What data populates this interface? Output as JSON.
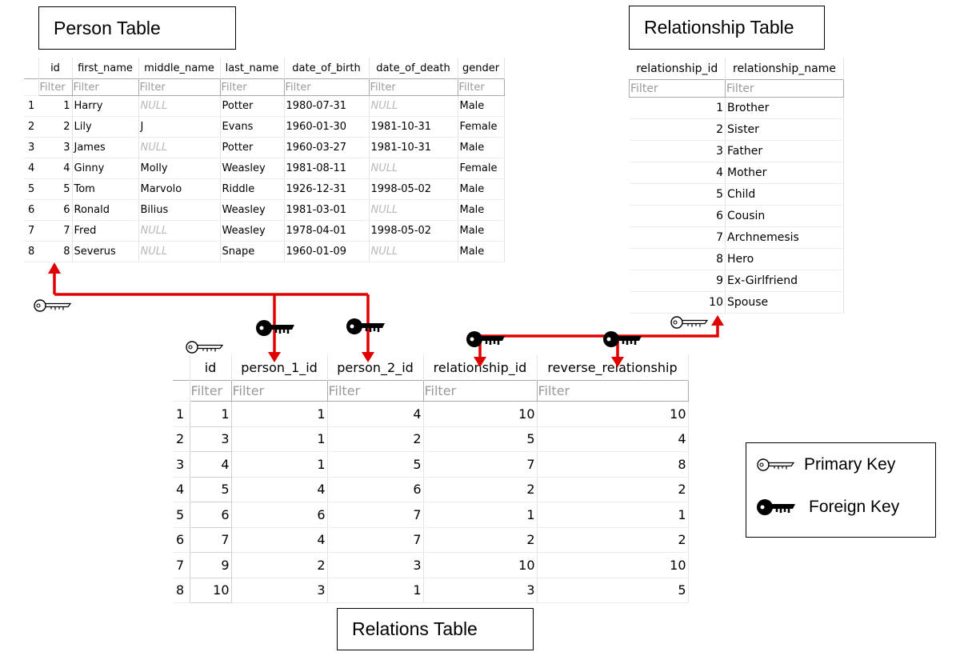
{
  "titles": {
    "person": "Person Table",
    "relationship": "Relationship Table",
    "relations": "Relations Table"
  },
  "filter_placeholder": "Filter",
  "null_text": "NULL",
  "person_table": {
    "columns": [
      "id",
      "first_name",
      "middle_name",
      "last_name",
      "date_of_birth",
      "date_of_death",
      "gender"
    ],
    "rows": [
      {
        "n": "1",
        "id": "1",
        "first_name": "Harry",
        "middle_name": null,
        "last_name": "Potter",
        "date_of_birth": "1980-07-31",
        "date_of_death": null,
        "gender": "Male"
      },
      {
        "n": "2",
        "id": "2",
        "first_name": "Lily",
        "middle_name": "J",
        "last_name": "Evans",
        "date_of_birth": "1960-01-30",
        "date_of_death": "1981-10-31",
        "gender": "Female"
      },
      {
        "n": "3",
        "id": "3",
        "first_name": "James",
        "middle_name": null,
        "last_name": "Potter",
        "date_of_birth": "1960-03-27",
        "date_of_death": "1981-10-31",
        "gender": "Male"
      },
      {
        "n": "4",
        "id": "4",
        "first_name": "Ginny",
        "middle_name": "Molly",
        "last_name": "Weasley",
        "date_of_birth": "1981-08-11",
        "date_of_death": null,
        "gender": "Female"
      },
      {
        "n": "5",
        "id": "5",
        "first_name": "Tom",
        "middle_name": "Marvolo",
        "last_name": "Riddle",
        "date_of_birth": "1926-12-31",
        "date_of_death": "1998-05-02",
        "gender": "Male"
      },
      {
        "n": "6",
        "id": "6",
        "first_name": "Ronald",
        "middle_name": "Bilius",
        "last_name": "Weasley",
        "date_of_birth": "1981-03-01",
        "date_of_death": null,
        "gender": "Male"
      },
      {
        "n": "7",
        "id": "7",
        "first_name": "Fred",
        "middle_name": null,
        "last_name": "Weasley",
        "date_of_birth": "1978-04-01",
        "date_of_death": "1998-05-02",
        "gender": "Male"
      },
      {
        "n": "8",
        "id": "8",
        "first_name": "Severus",
        "middle_name": null,
        "last_name": "Snape",
        "date_of_birth": "1960-01-09",
        "date_of_death": null,
        "gender": "Male"
      }
    ]
  },
  "relationship_table": {
    "columns": [
      "relationship_id",
      "relationship_name"
    ],
    "rows": [
      {
        "relationship_id": "1",
        "relationship_name": "Brother"
      },
      {
        "relationship_id": "2",
        "relationship_name": "Sister"
      },
      {
        "relationship_id": "3",
        "relationship_name": "Father"
      },
      {
        "relationship_id": "4",
        "relationship_name": "Mother"
      },
      {
        "relationship_id": "5",
        "relationship_name": "Child"
      },
      {
        "relationship_id": "6",
        "relationship_name": "Cousin"
      },
      {
        "relationship_id": "7",
        "relationship_name": "Archnemesis"
      },
      {
        "relationship_id": "8",
        "relationship_name": "Hero"
      },
      {
        "relationship_id": "9",
        "relationship_name": "Ex-Girlfriend"
      },
      {
        "relationship_id": "10",
        "relationship_name": "Spouse"
      }
    ]
  },
  "relations_table": {
    "columns": [
      "id",
      "person_1_id",
      "person_2_id",
      "relationship_id",
      "reverse_relationship"
    ],
    "rows": [
      {
        "n": "1",
        "id": "1",
        "person_1_id": "1",
        "person_2_id": "4",
        "relationship_id": "10",
        "reverse_relationship": "10"
      },
      {
        "n": "2",
        "id": "3",
        "person_1_id": "1",
        "person_2_id": "2",
        "relationship_id": "5",
        "reverse_relationship": "4"
      },
      {
        "n": "3",
        "id": "4",
        "person_1_id": "1",
        "person_2_id": "5",
        "relationship_id": "7",
        "reverse_relationship": "8"
      },
      {
        "n": "4",
        "id": "5",
        "person_1_id": "4",
        "person_2_id": "6",
        "relationship_id": "2",
        "reverse_relationship": "2"
      },
      {
        "n": "5",
        "id": "6",
        "person_1_id": "6",
        "person_2_id": "7",
        "relationship_id": "1",
        "reverse_relationship": "1"
      },
      {
        "n": "6",
        "id": "7",
        "person_1_id": "4",
        "person_2_id": "7",
        "relationship_id": "2",
        "reverse_relationship": "2"
      },
      {
        "n": "7",
        "id": "9",
        "person_1_id": "2",
        "person_2_id": "3",
        "relationship_id": "10",
        "reverse_relationship": "10"
      },
      {
        "n": "8",
        "id": "10",
        "person_1_id": "3",
        "person_2_id": "1",
        "relationship_id": "3",
        "reverse_relationship": "5"
      }
    ]
  },
  "legend": {
    "primary_key": "Primary Key",
    "foreign_key": "Foreign Key",
    "primary_icon": "key-outline-icon",
    "foreign_icon": "key-filled-icon"
  },
  "colors": {
    "arrow": "#e00000",
    "key": "#000000"
  }
}
